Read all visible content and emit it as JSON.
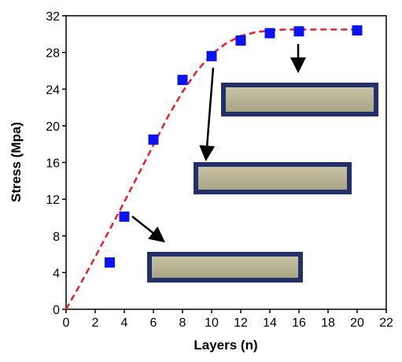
{
  "chart_data": {
    "type": "scatter",
    "xlabel": "Layers (n)",
    "ylabel": "Stress (Mpa)",
    "xlim": [
      0,
      22
    ],
    "xticks": [
      0,
      2,
      4,
      6,
      8,
      10,
      12,
      14,
      16,
      18,
      20,
      22
    ],
    "ylim": [
      0,
      32
    ],
    "yticks": [
      0,
      4,
      8,
      12,
      16,
      20,
      24,
      28,
      32
    ],
    "series": [
      {
        "style": "marker",
        "color": "#0a14f0",
        "x": [
          3,
          4,
          6,
          8,
          10,
          12,
          14,
          16,
          20
        ],
        "values": [
          5.1,
          10.1,
          18.5,
          25,
          27.6,
          29.3,
          30.1,
          30.3,
          30.4
        ]
      },
      {
        "style": "dashed-line",
        "color": "#e8202a",
        "x": [
          0,
          1,
          2,
          3,
          4,
          5,
          6,
          7,
          8,
          9,
          10,
          11,
          12,
          13,
          14,
          15,
          16,
          17,
          18,
          19,
          20
        ],
        "values": [
          0,
          2.8,
          5.7,
          8.7,
          11.7,
          14.8,
          17.9,
          21,
          23.7,
          26,
          27.8,
          29,
          29.8,
          30.2,
          30.4,
          30.5,
          30.5,
          30.5,
          30.5,
          30.5,
          30.5
        ]
      }
    ]
  }
}
